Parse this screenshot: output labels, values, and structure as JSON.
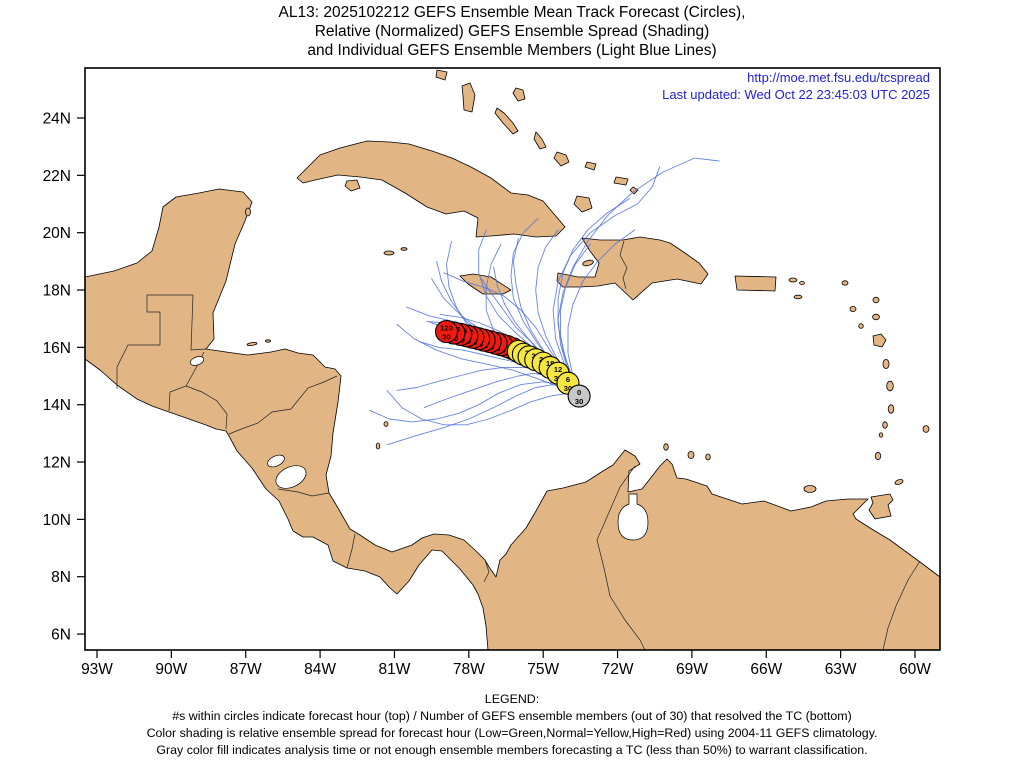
{
  "title": {
    "line1": "AL13: 2025102212 GEFS Ensemble Mean Track Forecast (Circles),",
    "line2": "Relative (Normalized) GEFS Ensemble Spread (Shading)",
    "line3": "and Individual GEFS Ensemble Members (Light Blue Lines)"
  },
  "links": {
    "url": "http://moe.met.fsu.edu/tcspread",
    "updated": "Last updated: Wed Oct 22 23:45:03 UTC 2025"
  },
  "legend": {
    "heading": "LEGEND:",
    "line1": "#s within circles indicate forecast hour (top) / Number of GEFS ensemble members (out of 30) that resolved the TC (bottom)",
    "line2": "Color shading is relative ensemble spread for forecast hour (Low=Green,Normal=Yellow,High=Red) using 2004-11 GEFS climatology.",
    "line3": "Gray color fill indicates analysis time or not enough ensemble members forecasting a TC (less than 50%) to warrant classification."
  },
  "colors": {
    "land": "#e2b584",
    "water": "#ffffff",
    "member_track": "#4f6fdc",
    "spread_normal": "#f5e642",
    "spread_high": "#ee1c10",
    "analysis_fill": "#c8c8c8",
    "link_text": "#2323cd"
  },
  "axes": {
    "lat": [
      {
        "v": 24,
        "t": "24N"
      },
      {
        "v": 22,
        "t": "22N"
      },
      {
        "v": 20,
        "t": "20N"
      },
      {
        "v": 18,
        "t": "18N"
      },
      {
        "v": 16,
        "t": "16N"
      },
      {
        "v": 14,
        "t": "14N"
      },
      {
        "v": 12,
        "t": "12N"
      },
      {
        "v": 10,
        "t": "10N"
      },
      {
        "v": 8,
        "t": "8N"
      },
      {
        "v": 6,
        "t": "6N"
      }
    ],
    "lon": [
      {
        "v": 93,
        "t": "93W"
      },
      {
        "v": 90,
        "t": "90W"
      },
      {
        "v": 87,
        "t": "87W"
      },
      {
        "v": 84,
        "t": "84W"
      },
      {
        "v": 81,
        "t": "81W"
      },
      {
        "v": 78,
        "t": "78W"
      },
      {
        "v": 75,
        "t": "75W"
      },
      {
        "v": 72,
        "t": "72W"
      },
      {
        "v": 69,
        "t": "69W"
      },
      {
        "v": 66,
        "t": "66W"
      },
      {
        "v": 63,
        "t": "63W"
      },
      {
        "v": 60,
        "t": "60W"
      }
    ]
  },
  "chart_data": {
    "type": "map-tracks",
    "storm_id": "AL13",
    "cycle": "2025102212",
    "mean_track": [
      {
        "hour": 0,
        "members": 30,
        "lon": 73.55,
        "lat": 14.3,
        "c": "gray"
      },
      {
        "hour": 6,
        "members": 30,
        "lon": 74.0,
        "lat": 14.75,
        "c": "yellow"
      },
      {
        "hour": 12,
        "members": 30,
        "lon": 74.4,
        "lat": 15.1,
        "c": "yellow"
      },
      {
        "hour": 18,
        "members": 30,
        "lon": 74.72,
        "lat": 15.3,
        "c": "yellow"
      },
      {
        "hour": 24,
        "members": 30,
        "lon": 75.0,
        "lat": 15.45,
        "c": "yellow"
      },
      {
        "hour": 30,
        "members": 30,
        "lon": 75.3,
        "lat": 15.57,
        "c": "yellow"
      },
      {
        "hour": 36,
        "members": 30,
        "lon": 75.57,
        "lat": 15.67,
        "c": "yellow"
      },
      {
        "hour": 42,
        "members": 30,
        "lon": 75.8,
        "lat": 15.76,
        "c": "yellow"
      },
      {
        "hour": 48,
        "members": 30,
        "lon": 76.0,
        "lat": 15.86,
        "c": "yellow"
      },
      {
        "hour": 54,
        "members": 30,
        "lon": 76.22,
        "lat": 15.95,
        "c": "red"
      },
      {
        "hour": 60,
        "members": 30,
        "lon": 76.45,
        "lat": 16.03,
        "c": "red"
      },
      {
        "hour": 66,
        "members": 30,
        "lon": 76.68,
        "lat": 16.09,
        "c": "red"
      },
      {
        "hour": 72,
        "members": 30,
        "lon": 76.9,
        "lat": 16.14,
        "c": "red"
      },
      {
        "hour": 78,
        "members": 30,
        "lon": 77.14,
        "lat": 16.2,
        "c": "red"
      },
      {
        "hour": 84,
        "members": 30,
        "lon": 77.38,
        "lat": 16.25,
        "c": "red"
      },
      {
        "hour": 90,
        "members": 30,
        "lon": 77.6,
        "lat": 16.3,
        "c": "red"
      },
      {
        "hour": 96,
        "members": 30,
        "lon": 77.84,
        "lat": 16.35,
        "c": "red"
      },
      {
        "hour": 102,
        "members": 30,
        "lon": 78.08,
        "lat": 16.4,
        "c": "red"
      },
      {
        "hour": 108,
        "members": 30,
        "lon": 78.33,
        "lat": 16.45,
        "c": "red"
      },
      {
        "hour": 114,
        "members": 30,
        "lon": 78.6,
        "lat": 16.5,
        "c": "red"
      },
      {
        "hour": 120,
        "members": 30,
        "lon": 78.9,
        "lat": 16.55,
        "c": "red"
      }
    ],
    "member_tracks": [
      [
        [
          73.55,
          14.3
        ],
        [
          74.3,
          14.9
        ],
        [
          75.1,
          15.4
        ],
        [
          75.9,
          15.8
        ],
        [
          76.8,
          16.1
        ],
        [
          77.8,
          16.4
        ],
        [
          78.8,
          16.6
        ],
        [
          79.6,
          16.9
        ]
      ],
      [
        [
          73.55,
          14.3
        ],
        [
          74.2,
          15.0
        ],
        [
          74.9,
          15.6
        ],
        [
          75.5,
          16.2
        ],
        [
          76.1,
          16.7
        ],
        [
          76.6,
          17.3
        ],
        [
          77.1,
          17.9
        ],
        [
          77.5,
          18.4
        ]
      ],
      [
        [
          73.55,
          14.3
        ],
        [
          74.4,
          14.8
        ],
        [
          75.3,
          15.2
        ],
        [
          76.2,
          15.5
        ],
        [
          77.2,
          15.7
        ],
        [
          78.2,
          15.9
        ],
        [
          79.2,
          16.0
        ],
        [
          80.0,
          16.2
        ]
      ],
      [
        [
          73.55,
          14.3
        ],
        [
          74.1,
          14.7
        ],
        [
          74.8,
          15.0
        ],
        [
          75.4,
          15.1
        ],
        [
          76.0,
          15.0
        ],
        [
          76.9,
          14.8
        ],
        [
          77.9,
          14.5
        ],
        [
          78.9,
          14.2
        ],
        [
          79.8,
          13.9
        ]
      ],
      [
        [
          73.55,
          14.3
        ],
        [
          74.0,
          14.6
        ],
        [
          74.6,
          14.7
        ],
        [
          75.3,
          14.6
        ],
        [
          76.1,
          14.3
        ],
        [
          77.0,
          13.9
        ],
        [
          78.0,
          13.5
        ],
        [
          79.0,
          13.2
        ],
        [
          80.2,
          12.9
        ],
        [
          81.3,
          12.6
        ]
      ],
      [
        [
          73.55,
          14.3
        ],
        [
          74.3,
          15.1
        ],
        [
          75.0,
          15.9
        ],
        [
          75.5,
          16.6
        ],
        [
          75.9,
          17.4
        ],
        [
          76.1,
          18.2
        ],
        [
          76.2,
          19.0
        ],
        [
          76.0,
          19.8
        ]
      ],
      [
        [
          73.55,
          14.3
        ],
        [
          74.5,
          15.0
        ],
        [
          75.4,
          15.5
        ],
        [
          76.3,
          16.0
        ],
        [
          77.3,
          16.4
        ],
        [
          78.1,
          16.9
        ],
        [
          78.7,
          17.6
        ],
        [
          79.1,
          18.3
        ],
        [
          79.3,
          19.0
        ]
      ],
      [
        [
          73.55,
          14.3
        ],
        [
          74.2,
          14.9
        ],
        [
          75.0,
          15.3
        ],
        [
          75.8,
          15.6
        ],
        [
          76.5,
          16.0
        ],
        [
          77.0,
          16.6
        ],
        [
          77.3,
          17.3
        ],
        [
          77.3,
          18.1
        ],
        [
          77.1,
          18.9
        ],
        [
          76.7,
          19.6
        ]
      ],
      [
        [
          73.55,
          14.3
        ],
        [
          74.0,
          15.0
        ],
        [
          74.5,
          15.7
        ],
        [
          74.9,
          16.4
        ],
        [
          75.2,
          17.2
        ],
        [
          75.3,
          18.0
        ],
        [
          75.2,
          18.8
        ],
        [
          74.9,
          19.5
        ],
        [
          74.4,
          20.1
        ]
      ],
      [
        [
          73.55,
          14.3
        ],
        [
          73.9,
          15.1
        ],
        [
          74.2,
          15.9
        ],
        [
          74.4,
          16.8
        ],
        [
          74.4,
          17.7
        ],
        [
          74.2,
          18.6
        ],
        [
          73.8,
          19.4
        ],
        [
          73.2,
          20.1
        ],
        [
          72.4,
          20.7
        ],
        [
          71.5,
          21.2
        ]
      ],
      [
        [
          73.55,
          14.3
        ],
        [
          74.0,
          15.2
        ],
        [
          74.3,
          16.1
        ],
        [
          74.4,
          17.0
        ],
        [
          74.2,
          17.9
        ],
        [
          73.8,
          18.8
        ],
        [
          73.2,
          19.7
        ],
        [
          72.4,
          20.6
        ],
        [
          71.4,
          21.4
        ],
        [
          70.2,
          22.1
        ],
        [
          68.9,
          22.6
        ],
        [
          67.9,
          22.5
        ]
      ],
      [
        [
          73.55,
          14.3
        ],
        [
          74.3,
          14.6
        ],
        [
          75.2,
          14.9
        ],
        [
          76.2,
          15.2
        ],
        [
          77.2,
          15.4
        ],
        [
          78.3,
          15.6
        ],
        [
          79.3,
          15.9
        ],
        [
          80.2,
          16.3
        ],
        [
          80.9,
          16.8
        ]
      ],
      [
        [
          73.55,
          14.3
        ],
        [
          74.6,
          15.1
        ],
        [
          75.6,
          15.7
        ],
        [
          76.6,
          16.2
        ],
        [
          77.5,
          16.6
        ],
        [
          78.3,
          17.1
        ],
        [
          79.0,
          17.7
        ],
        [
          79.5,
          18.4
        ]
      ],
      [
        [
          73.55,
          14.3
        ],
        [
          74.2,
          15.2
        ],
        [
          74.8,
          16.0
        ],
        [
          75.3,
          16.7
        ],
        [
          75.9,
          17.3
        ],
        [
          76.6,
          17.8
        ],
        [
          77.4,
          18.1
        ],
        [
          78.2,
          18.3
        ],
        [
          79.0,
          18.6
        ]
      ],
      [
        [
          73.55,
          14.3
        ],
        [
          74.4,
          15.3
        ],
        [
          75.2,
          16.1
        ],
        [
          75.8,
          16.9
        ],
        [
          76.2,
          17.7
        ],
        [
          76.3,
          18.5
        ],
        [
          76.2,
          19.3
        ],
        [
          75.8,
          20.0
        ],
        [
          75.2,
          20.5
        ]
      ],
      [
        [
          73.55,
          14.3
        ],
        [
          74.1,
          14.8
        ],
        [
          74.9,
          15.1
        ],
        [
          75.7,
          15.3
        ],
        [
          76.6,
          15.3
        ],
        [
          77.5,
          15.2
        ],
        [
          78.4,
          15.0
        ],
        [
          79.3,
          14.8
        ],
        [
          80.1,
          14.6
        ],
        [
          80.9,
          14.5
        ]
      ],
      [
        [
          73.55,
          14.3
        ],
        [
          73.8,
          14.9
        ],
        [
          74.1,
          15.6
        ],
        [
          74.3,
          16.4
        ],
        [
          74.3,
          17.3
        ],
        [
          74.1,
          18.1
        ],
        [
          73.7,
          18.9
        ],
        [
          73.1,
          19.6
        ]
      ],
      [
        [
          73.55,
          14.3
        ],
        [
          74.5,
          14.9
        ],
        [
          75.5,
          15.3
        ],
        [
          76.4,
          15.7
        ],
        [
          77.3,
          16.1
        ],
        [
          78.0,
          16.7
        ],
        [
          78.5,
          17.4
        ],
        [
          78.8,
          18.1
        ],
        [
          78.9,
          18.9
        ],
        [
          78.7,
          19.7
        ]
      ],
      [
        [
          73.55,
          14.3
        ],
        [
          74.3,
          15.0
        ],
        [
          75.1,
          15.5
        ],
        [
          75.9,
          16.0
        ],
        [
          76.7,
          16.4
        ],
        [
          77.6,
          16.7
        ],
        [
          78.6,
          16.9
        ],
        [
          79.6,
          17.1
        ],
        [
          80.5,
          17.4
        ]
      ],
      [
        [
          73.55,
          14.3
        ],
        [
          74.2,
          14.7
        ],
        [
          75.0,
          14.8
        ],
        [
          75.9,
          14.7
        ],
        [
          76.8,
          14.4
        ],
        [
          77.6,
          14.0
        ],
        [
          78.4,
          13.7
        ],
        [
          79.3,
          13.5
        ],
        [
          80.3,
          13.4
        ],
        [
          81.2,
          13.5
        ],
        [
          82.0,
          13.8
        ]
      ],
      [
        [
          73.55,
          14.3
        ],
        [
          73.8,
          15.0
        ],
        [
          74.0,
          15.8
        ],
        [
          74.0,
          16.7
        ],
        [
          73.8,
          17.5
        ],
        [
          73.4,
          18.3
        ],
        [
          72.8,
          19.0
        ],
        [
          72.1,
          19.6
        ],
        [
          71.3,
          20.1
        ]
      ],
      [
        [
          73.55,
          14.3
        ],
        [
          74.4,
          15.2
        ],
        [
          75.3,
          15.9
        ],
        [
          76.1,
          16.5
        ],
        [
          76.8,
          17.1
        ],
        [
          77.3,
          17.8
        ],
        [
          77.6,
          18.6
        ],
        [
          77.6,
          19.4
        ],
        [
          77.3,
          20.1
        ]
      ],
      [
        [
          73.55,
          14.3
        ],
        [
          74.0,
          14.4
        ],
        [
          74.7,
          14.3
        ],
        [
          75.5,
          14.1
        ],
        [
          76.3,
          13.8
        ],
        [
          77.2,
          13.5
        ],
        [
          78.1,
          13.3
        ],
        [
          79.0,
          13.3
        ],
        [
          79.9,
          13.5
        ],
        [
          80.7,
          13.9
        ],
        [
          81.3,
          14.5
        ]
      ],
      [
        [
          73.55,
          14.3
        ],
        [
          74.35,
          15.05
        ],
        [
          75.15,
          15.65
        ],
        [
          75.95,
          16.15
        ],
        [
          76.75,
          16.55
        ],
        [
          77.55,
          16.85
        ],
        [
          78.35,
          17.05
        ],
        [
          79.15,
          17.15
        ]
      ],
      [
        [
          73.55,
          14.3
        ],
        [
          74.1,
          15.3
        ],
        [
          74.5,
          16.3
        ],
        [
          74.6,
          17.3
        ],
        [
          74.4,
          18.3
        ],
        [
          73.9,
          19.2
        ],
        [
          73.1,
          20.0
        ],
        [
          72.1,
          20.6
        ],
        [
          71.2,
          21.0
        ],
        [
          70.6,
          21.6
        ],
        [
          70.3,
          22.3
        ]
      ],
      [
        [
          73.55,
          14.3
        ],
        [
          74.25,
          15.0
        ],
        [
          75.0,
          15.55
        ],
        [
          75.75,
          16.0
        ],
        [
          76.5,
          16.35
        ],
        [
          77.3,
          16.6
        ],
        [
          78.1,
          16.75
        ],
        [
          78.9,
          16.85
        ],
        [
          79.7,
          16.9
        ]
      ],
      [
        [
          73.55,
          14.3
        ],
        [
          74.15,
          14.85
        ],
        [
          74.85,
          15.25
        ],
        [
          75.6,
          15.55
        ],
        [
          76.35,
          15.8
        ],
        [
          77.15,
          16.0
        ],
        [
          78.0,
          16.15
        ],
        [
          78.85,
          16.25
        ]
      ],
      [
        [
          73.55,
          14.3
        ],
        [
          74.35,
          15.15
        ],
        [
          75.05,
          15.8
        ],
        [
          75.65,
          16.35
        ],
        [
          76.15,
          16.9
        ],
        [
          76.55,
          17.5
        ],
        [
          76.85,
          18.15
        ],
        [
          77.0,
          18.8
        ]
      ]
    ]
  }
}
